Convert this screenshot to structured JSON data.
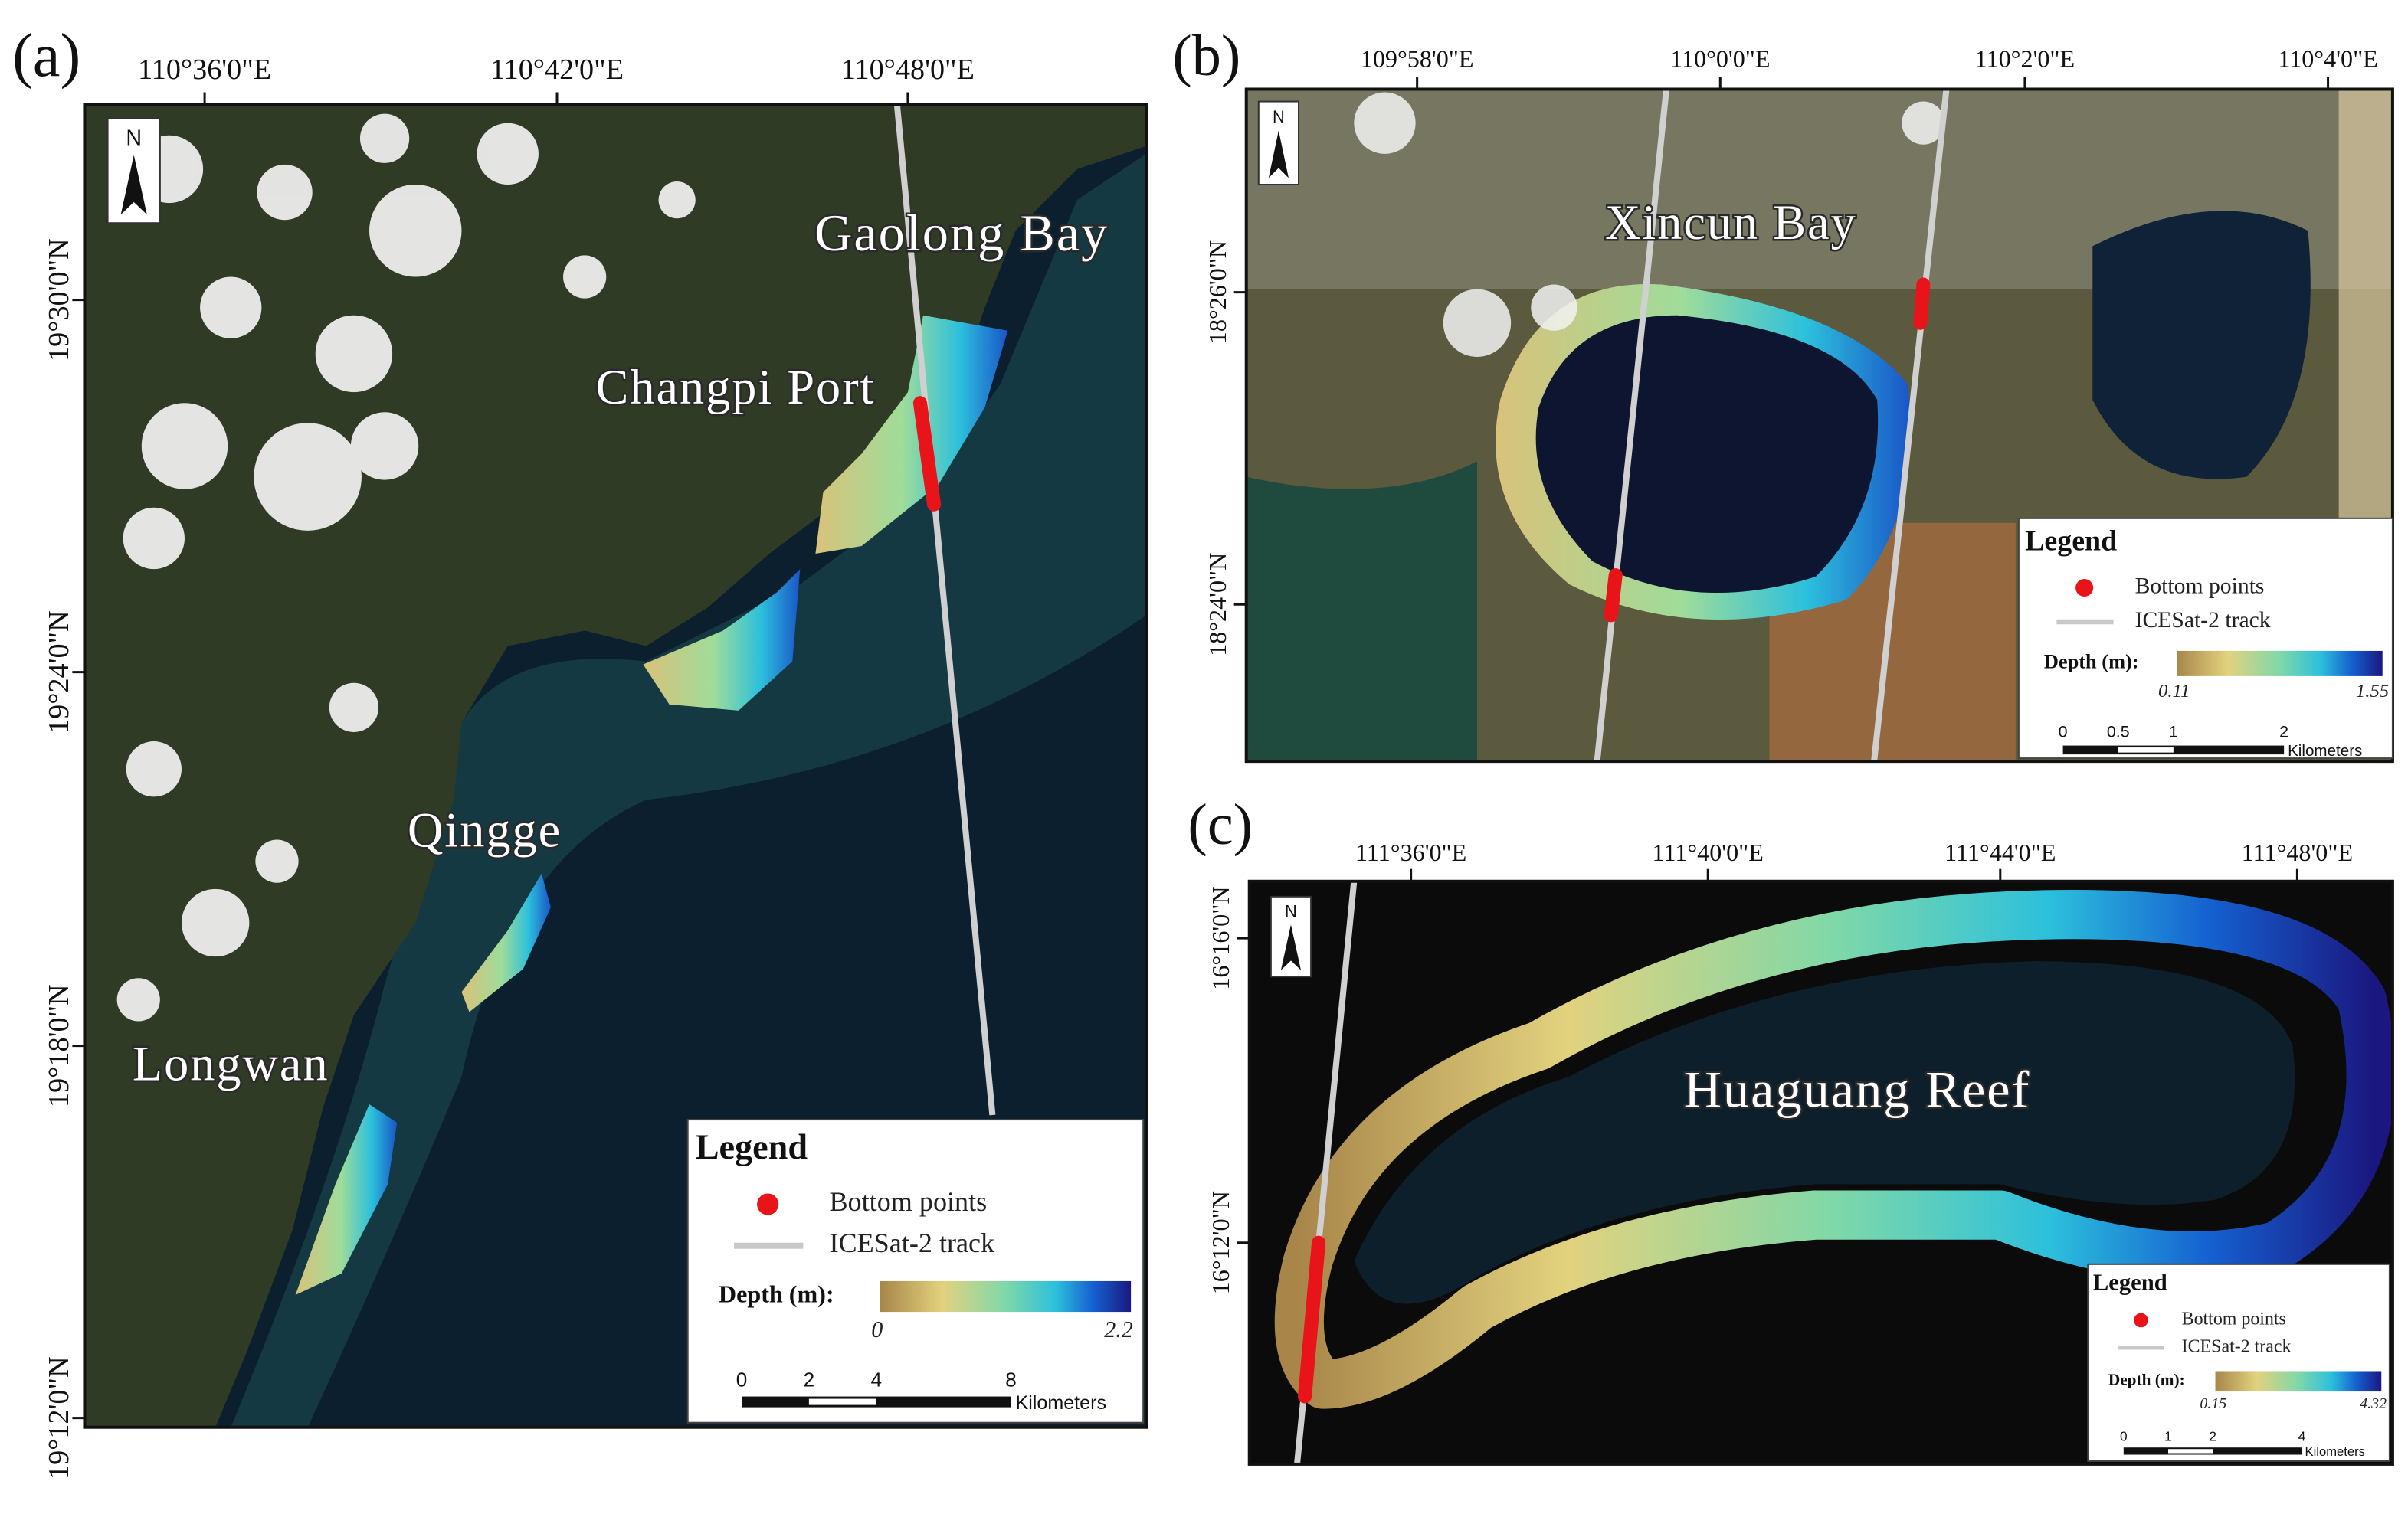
{
  "panels": [
    {
      "label": "(a)",
      "longitude_labels": [
        "110°36'0\"E",
        "110°42'0\"E",
        "110°48'0\"E"
      ],
      "latitude_labels": [
        "19°30'0\"N",
        "19°24'0\"N",
        "19°18'0\"N",
        "19°12'0\"N"
      ],
      "north": "N",
      "places": [
        "Gaolong Bay",
        "Changpi Port",
        "Qingge",
        "Longwan"
      ],
      "legend": {
        "title": "Legend",
        "bottom_points": "Bottom points",
        "track": "ICESat-2 track",
        "depth_label": "Depth (m):",
        "depth_min": "0",
        "depth_max": "2.2",
        "scale_labels": [
          "0",
          "2",
          "4",
          "8"
        ],
        "scale_unit": "Kilometers"
      }
    },
    {
      "label": "(b)",
      "longitude_labels": [
        "109°58'0\"E",
        "110°0'0\"E",
        "110°2'0\"E",
        "110°4'0\"E"
      ],
      "latitude_labels": [
        "18°26'0\"N",
        "18°24'0\"N"
      ],
      "north": "N",
      "places": [
        "Xincun Bay"
      ],
      "legend": {
        "title": "Legend",
        "bottom_points": "Bottom points",
        "track": "ICESat-2 track",
        "depth_label": "Depth (m):",
        "depth_min": "0.11",
        "depth_max": "1.55",
        "scale_labels": [
          "0",
          "0.5",
          "1",
          "2"
        ],
        "scale_unit": "Kilometers"
      }
    },
    {
      "label": "(c)",
      "longitude_labels": [
        "111°36'0\"E",
        "111°40'0\"E",
        "111°44'0\"E",
        "111°48'0\"E"
      ],
      "latitude_labels": [
        "16°16'0\"N",
        "16°12'0\"N"
      ],
      "north": "N",
      "places": [
        "Huaguang Reef"
      ],
      "legend": {
        "title": "Legend",
        "bottom_points": "Bottom points",
        "track": "ICESat-2 track",
        "depth_label": "Depth (m):",
        "depth_min": "0.15",
        "depth_max": "4.32",
        "scale_labels": [
          "0",
          "1",
          "2",
          "4"
        ],
        "scale_unit": "Kilometers"
      }
    }
  ]
}
